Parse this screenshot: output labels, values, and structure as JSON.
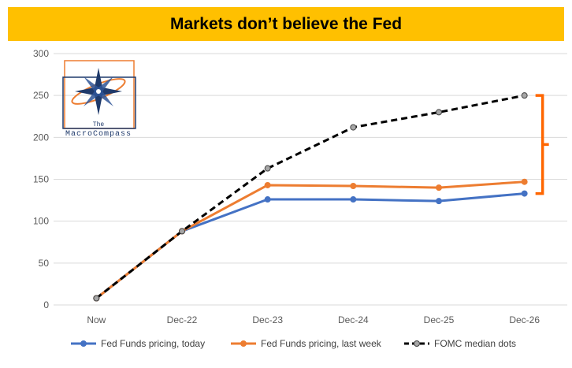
{
  "header": {
    "title": "Markets don’t believe the Fed",
    "background": "#ffc000"
  },
  "logo": {
    "line1": "The",
    "line2": "MacroCompass",
    "colors": {
      "navy": "#1f3a6b",
      "orange": "#ed7d31"
    }
  },
  "chart_data": {
    "type": "line",
    "categories": [
      "Now",
      "Dec-22",
      "Dec-23",
      "Dec-24",
      "Dec-25",
      "Dec-26"
    ],
    "ylim": [
      0,
      300
    ],
    "yticks": [
      0,
      50,
      100,
      150,
      200,
      250,
      300
    ],
    "grid": true,
    "legend_position": "bottom",
    "series": [
      {
        "name": "Fed Funds pricing, today",
        "color": "#4472c4",
        "style": "solid",
        "marker": "circle",
        "values": [
          8,
          88,
          126,
          126,
          124,
          133
        ]
      },
      {
        "name": "Fed Funds pricing, last week",
        "color": "#ed7d31",
        "style": "solid",
        "marker": "circle",
        "values": [
          8,
          88,
          143,
          142,
          140,
          147
        ]
      },
      {
        "name": "FOMC median dots",
        "color": "#000000",
        "style": "dashed",
        "marker": "circle",
        "values": [
          8,
          88,
          163,
          212,
          230,
          250
        ]
      }
    ],
    "annotations": [
      {
        "type": "bracket",
        "color": "#ff6600",
        "from": 133,
        "to": 250,
        "category": "Dec-26"
      }
    ]
  }
}
